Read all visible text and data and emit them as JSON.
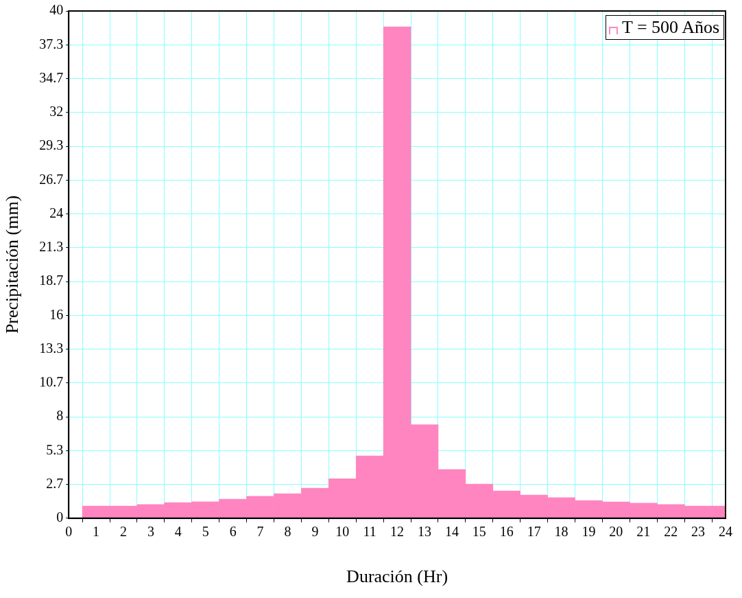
{
  "chart_data": {
    "type": "bar",
    "xlabel": "Duración (Hr)",
    "ylabel": "Precipitación (mm)",
    "x": [
      1,
      2,
      3,
      4,
      5,
      6,
      7,
      8,
      9,
      10,
      11,
      12,
      13,
      14,
      15,
      16,
      17,
      18,
      19,
      20,
      21,
      22,
      23,
      24
    ],
    "series": [
      {
        "name": "T = 500 Años",
        "color": "#ff85c0",
        "values": [
          0.96,
          0.96,
          1.08,
          1.23,
          1.3,
          1.5,
          1.73,
          1.94,
          2.37,
          3.11,
          4.91,
          38.75,
          7.37,
          3.84,
          2.69,
          2.15,
          1.83,
          1.62,
          1.39,
          1.28,
          1.19,
          1.08,
          0.96,
          0.96
        ]
      }
    ],
    "xlim": [
      0,
      24
    ],
    "xticks": [
      0,
      1,
      2,
      3,
      4,
      5,
      6,
      7,
      8,
      9,
      10,
      11,
      12,
      13,
      14,
      15,
      16,
      17,
      18,
      19,
      20,
      21,
      22,
      23,
      24
    ],
    "ylim": [
      0,
      40
    ],
    "yticks": [
      0,
      {
        "value": 2.667,
        "label": "2.7"
      },
      {
        "value": 5.333,
        "label": "5.3"
      },
      8,
      {
        "value": 10.667,
        "label": "10.7"
      },
      {
        "value": 13.333,
        "label": "13.3"
      },
      16,
      {
        "value": 18.667,
        "label": "18.7"
      },
      {
        "value": 21.333,
        "label": "21.3"
      },
      24,
      {
        "value": 26.667,
        "label": "26.7"
      },
      {
        "value": 29.333,
        "label": "29.3"
      },
      32,
      {
        "value": 34.667,
        "label": "34.7"
      },
      {
        "value": 37.333,
        "label": "37.3"
      },
      40
    ],
    "grid": true,
    "legend": "top right"
  }
}
